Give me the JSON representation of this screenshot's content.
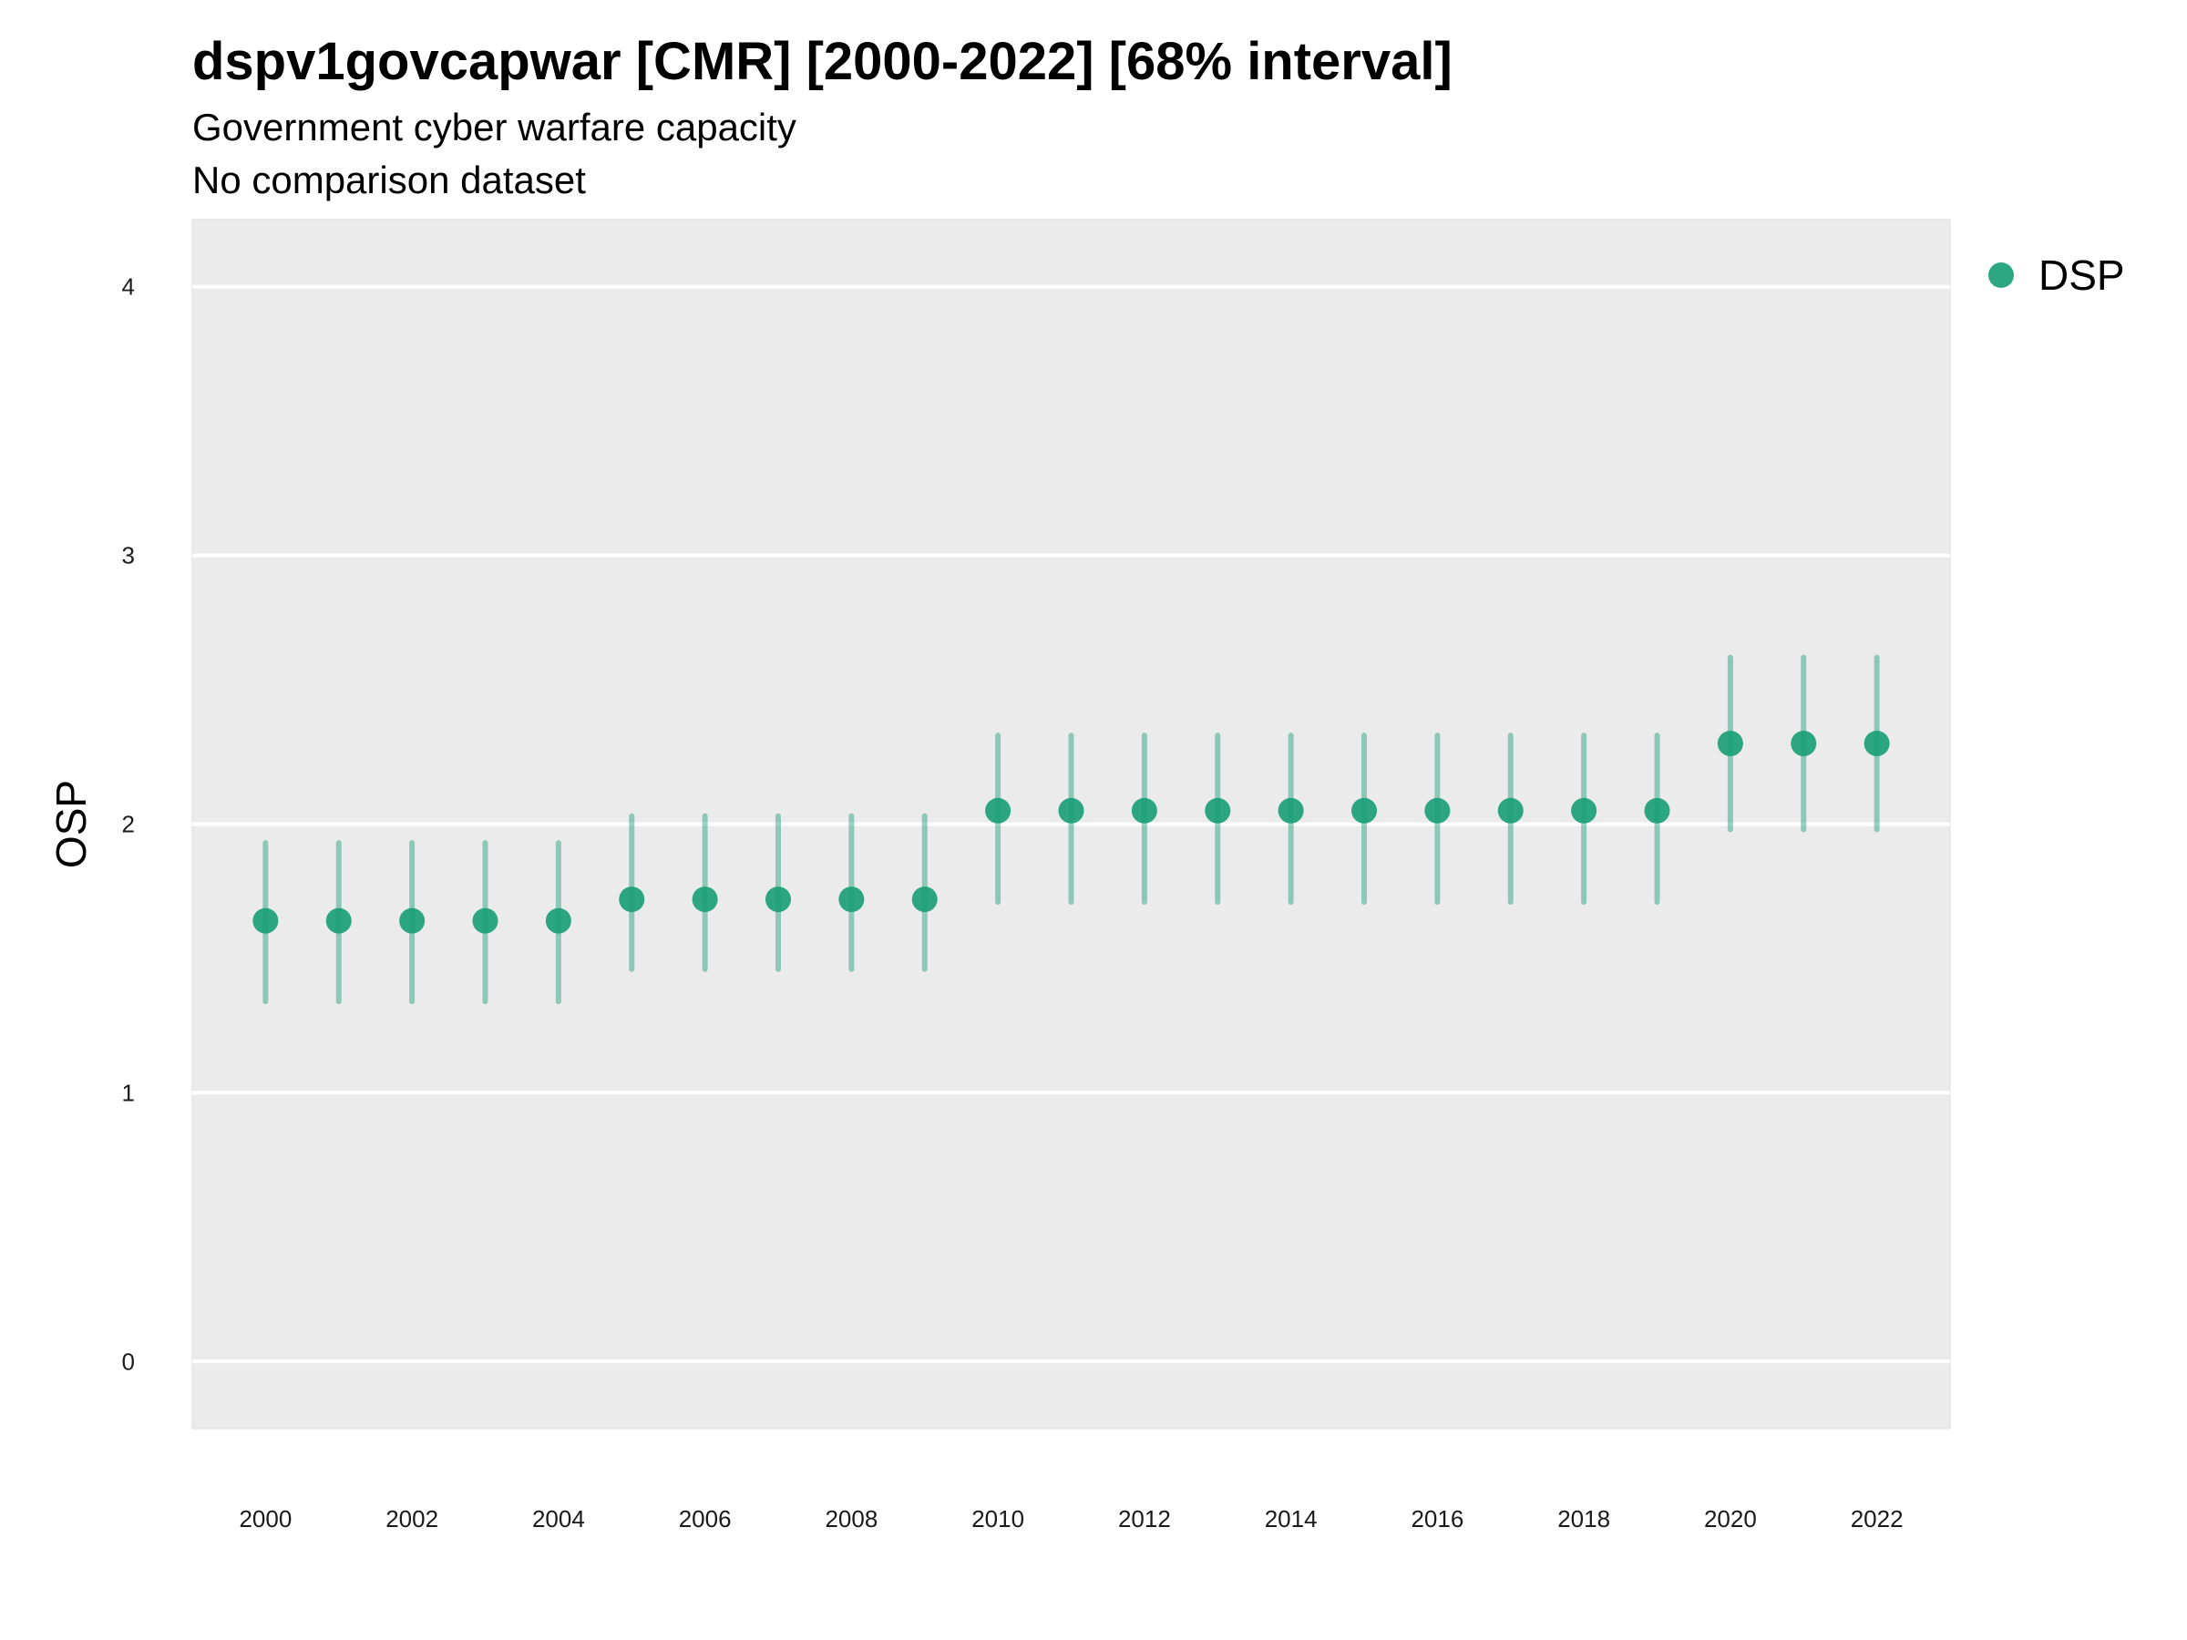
{
  "chart_data": {
    "type": "scatter",
    "title": "dspv1govcapwar [CMR] [2000-2022] [68% interval]",
    "subtitle": "Government cyber warfare capacity",
    "caption": "No comparison dataset",
    "xlabel": "",
    "ylabel": "OSP",
    "xlim": [
      1999,
      2023
    ],
    "ylim": [
      -0.25,
      4.25
    ],
    "x_ticks": [
      2000,
      2002,
      2004,
      2006,
      2008,
      2010,
      2012,
      2014,
      2016,
      2018,
      2020,
      2022
    ],
    "y_ticks": [
      0,
      1,
      2,
      3,
      4
    ],
    "grid": true,
    "legend_position": "top-right",
    "colors": {
      "point": "#1b9e77",
      "panel": "#ebebeb",
      "grid": "#ffffff"
    },
    "series": [
      {
        "name": "DSP",
        "x": [
          2000,
          2001,
          2002,
          2003,
          2004,
          2005,
          2006,
          2007,
          2008,
          2009,
          2010,
          2011,
          2012,
          2013,
          2014,
          2015,
          2016,
          2017,
          2018,
          2019,
          2020,
          2021,
          2022
        ],
        "y": [
          1.64,
          1.64,
          1.64,
          1.64,
          1.64,
          1.72,
          1.72,
          1.72,
          1.72,
          1.72,
          2.05,
          2.05,
          2.05,
          2.05,
          2.05,
          2.05,
          2.05,
          2.05,
          2.05,
          2.05,
          2.3,
          2.3,
          2.3
        ],
        "lower": [
          1.34,
          1.34,
          1.34,
          1.34,
          1.34,
          1.46,
          1.46,
          1.46,
          1.46,
          1.46,
          1.71,
          1.71,
          1.71,
          1.71,
          1.71,
          1.71,
          1.71,
          1.71,
          1.71,
          1.71,
          1.98,
          1.98,
          1.98
        ],
        "upper": [
          1.93,
          1.93,
          1.93,
          1.93,
          1.93,
          2.03,
          2.03,
          2.03,
          2.03,
          2.03,
          2.33,
          2.33,
          2.33,
          2.33,
          2.33,
          2.33,
          2.33,
          2.33,
          2.33,
          2.33,
          2.62,
          2.62,
          2.62
        ]
      }
    ]
  }
}
